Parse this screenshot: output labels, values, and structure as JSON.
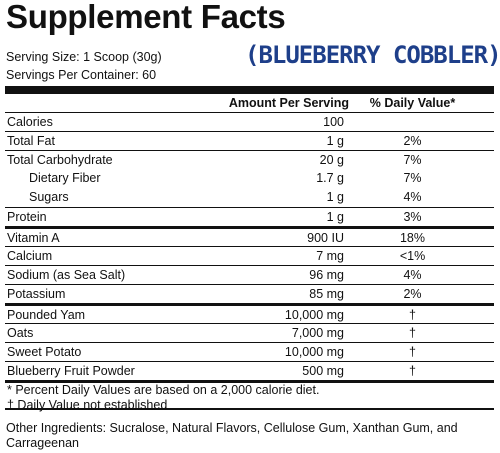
{
  "title": "Supplement Facts",
  "flavor": "(BLUEBERRY COBBLER)",
  "serving_size": "Serving Size: 1 Scoop (30g)",
  "servings_per_container": "Servings Per Container: 60",
  "header": {
    "amount": "Amount Per Serving",
    "dv": "% Daily Value*"
  },
  "rows": [
    {
      "name": "Calories",
      "amount": "100",
      "dv": ""
    },
    {
      "name": "Total Fat",
      "amount": "1 g",
      "dv": "2%"
    },
    {
      "name": "Total Carbohydrate",
      "amount": "20 g",
      "dv": "7%"
    },
    {
      "name": "Dietary Fiber",
      "amount": "1.7 g",
      "dv": "7%"
    },
    {
      "name": "Sugars",
      "amount": "1 g",
      "dv": "4%"
    },
    {
      "name": "Protein",
      "amount": "1 g",
      "dv": "3%"
    },
    {
      "name": "Vitamin A",
      "amount": "900 IU",
      "dv": "18%"
    },
    {
      "name": "Calcium",
      "amount": "7 mg",
      "dv": "<1%"
    },
    {
      "name": "Sodium (as Sea Salt)",
      "amount": "96 mg",
      "dv": "4%"
    },
    {
      "name": "Potassium",
      "amount": "85 mg",
      "dv": "2%"
    },
    {
      "name": "Pounded Yam",
      "amount": "10,000 mg",
      "dv": "†"
    },
    {
      "name": "Oats",
      "amount": "7,000 mg",
      "dv": "†"
    },
    {
      "name": "Sweet Potato",
      "amount": "10,000 mg",
      "dv": "†"
    },
    {
      "name": "Blueberry Fruit Powder",
      "amount": "500 mg",
      "dv": "†"
    }
  ],
  "footnotes": [
    "* Percent Daily Values are based on a 2,000 calorie diet.",
    "† Daily Value not established"
  ],
  "other_ingredients": "Other Ingredients: Sucralose, Natural Flavors, Cellulose Gum, Xanthan Gum, and Carrageenan"
}
